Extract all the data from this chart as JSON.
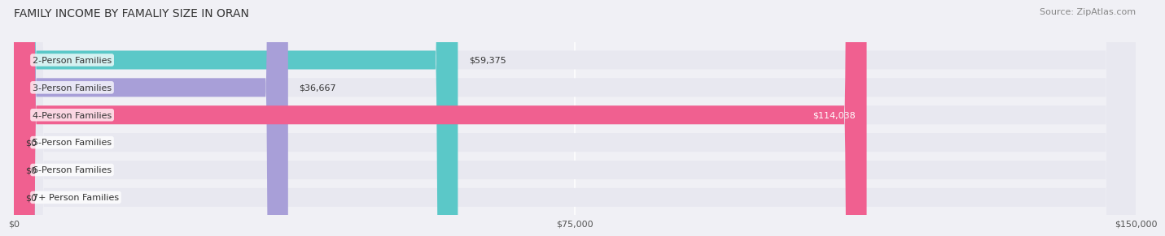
{
  "title": "FAMILY INCOME BY FAMALIY SIZE IN ORAN",
  "source": "Source: ZipAtlas.com",
  "categories": [
    "2-Person Families",
    "3-Person Families",
    "4-Person Families",
    "5-Person Families",
    "6-Person Families",
    "7+ Person Families"
  ],
  "values": [
    59375,
    36667,
    114038,
    0,
    0,
    0
  ],
  "bar_colors": [
    "#5bc8c8",
    "#a89fd8",
    "#f06090",
    "#f5c990",
    "#f0a0a0",
    "#a0b8d8"
  ],
  "label_colors": [
    "#333333",
    "#333333",
    "#ffffff",
    "#333333",
    "#333333",
    "#333333"
  ],
  "value_labels": [
    "$59,375",
    "$36,667",
    "$114,038",
    "$0",
    "$0",
    "$0"
  ],
  "xlim": [
    0,
    150000
  ],
  "xticks": [
    0,
    75000,
    150000
  ],
  "xticklabels": [
    "$0",
    "$75,000",
    "$150,000"
  ],
  "background_color": "#f0f0f5",
  "bar_background": "#e8e8f0",
  "title_fontsize": 10,
  "source_fontsize": 8,
  "label_fontsize": 8,
  "value_fontsize": 8
}
